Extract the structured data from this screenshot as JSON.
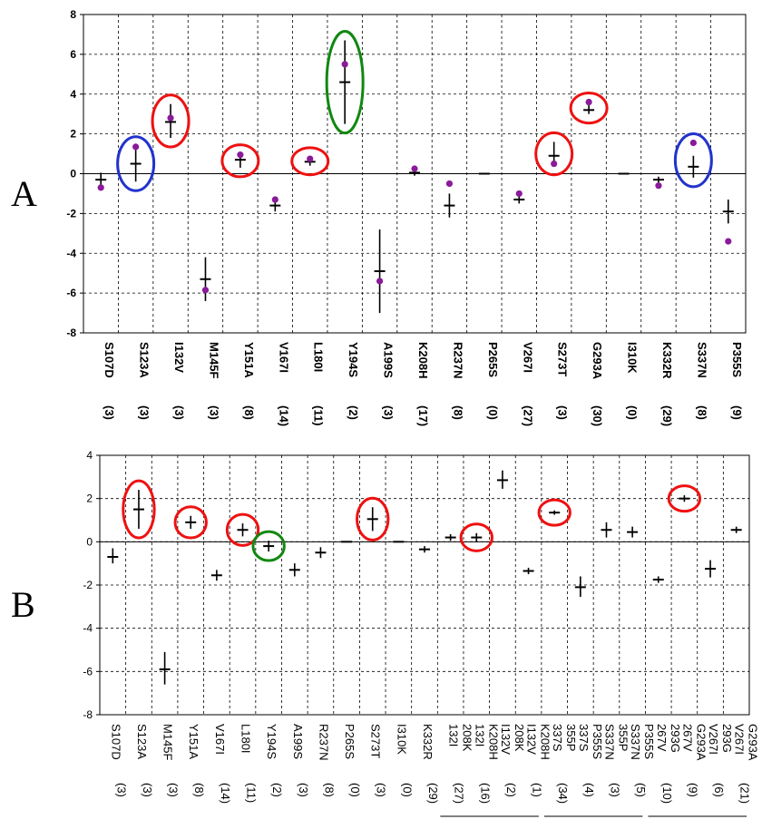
{
  "chart_data": [
    {
      "panel_label": "A",
      "type": "scatter",
      "ylim": [
        -8,
        8
      ],
      "yticks": [
        "8",
        "6",
        "4",
        "2",
        "0",
        "-2",
        "-4",
        "-6",
        "-8"
      ],
      "grid": true,
      "categories": [
        {
          "label": "S107D",
          "n": "(3)",
          "mean": -0.3,
          "lo": -0.7,
          "hi": 0.05,
          "dot": -0.7
        },
        {
          "label": "S123A",
          "n": "(3)",
          "mean": 0.5,
          "lo": -0.4,
          "hi": 1.4,
          "dot": 1.35,
          "circle": "blue"
        },
        {
          "label": "I132V",
          "n": "(3)",
          "mean": 2.6,
          "lo": 1.8,
          "hi": 3.5,
          "dot": 2.8,
          "circle": "red"
        },
        {
          "label": "M145F",
          "n": "(3)",
          "mean": -5.3,
          "lo": -6.4,
          "hi": -4.2,
          "dot": -5.85
        },
        {
          "label": "Y151A",
          "n": "(8)",
          "mean": 0.7,
          "lo": 0.3,
          "hi": 1.0,
          "dot": 0.95,
          "circle": "red"
        },
        {
          "label": "V167I",
          "n": "(14)",
          "mean": -1.6,
          "lo": -1.9,
          "hi": -1.3,
          "dot": -1.3
        },
        {
          "label": "L180I",
          "n": "(11)",
          "mean": 0.6,
          "lo": 0.4,
          "hi": 0.85,
          "dot": 0.75,
          "circle": "red"
        },
        {
          "label": "Y194S",
          "n": "(2)",
          "mean": 4.6,
          "lo": 2.5,
          "hi": 6.7,
          "dot": 5.5,
          "circle": "green"
        },
        {
          "label": "A199S",
          "n": "(3)",
          "mean": -4.9,
          "lo": -7.0,
          "hi": -2.8,
          "dot": -5.4
        },
        {
          "label": "K208H",
          "n": "(17)",
          "mean": 0.05,
          "lo": -0.1,
          "hi": 0.25,
          "dot": 0.25
        },
        {
          "label": "R237N",
          "n": "(8)",
          "mean": -1.6,
          "lo": -2.2,
          "hi": -1.0,
          "dot": -0.5
        },
        {
          "label": "P265S",
          "n": "(0)",
          "mean": 0.0,
          "lo": 0.0,
          "hi": 0.0
        },
        {
          "label": "V267I",
          "n": "(27)",
          "mean": -1.3,
          "lo": -1.5,
          "hi": -1.1,
          "dot": -1.0
        },
        {
          "label": "S273T",
          "n": "(3)",
          "mean": 0.9,
          "lo": 0.4,
          "hi": 1.6,
          "dot": 0.5,
          "circle": "red"
        },
        {
          "label": "G293A",
          "n": "(30)",
          "mean": 3.2,
          "lo": 3.0,
          "hi": 3.45,
          "dot": 3.6,
          "circle": "red"
        },
        {
          "label": "I310K",
          "n": "(0)",
          "mean": 0.0,
          "lo": 0.0,
          "hi": 0.0
        },
        {
          "label": "K332R",
          "n": "(29)",
          "mean": -0.3,
          "lo": -0.45,
          "hi": -0.15,
          "dot": -0.6
        },
        {
          "label": "S337N",
          "n": "(8)",
          "mean": 0.35,
          "lo": -0.2,
          "hi": 0.9,
          "dot": 1.55,
          "circle": "blue"
        },
        {
          "label": "P355S",
          "n": "(9)",
          "mean": -1.9,
          "lo": -2.5,
          "hi": -1.3,
          "dot": -3.4
        }
      ]
    },
    {
      "panel_label": "B",
      "type": "scatter",
      "ylim": [
        -8,
        4
      ],
      "yticks": [
        "4",
        "2",
        "0",
        "-2",
        "-4",
        "-6",
        "-8"
      ],
      "grid": true,
      "categories": [
        {
          "line1": "S107D",
          "line2": "",
          "n": "(3)",
          "mean": -0.7,
          "lo": -1.0,
          "hi": -0.3
        },
        {
          "line1": "S123A",
          "line2": "",
          "n": "(3)",
          "mean": 1.5,
          "lo": 0.6,
          "hi": 2.4,
          "circle": "red"
        },
        {
          "line1": "M145F",
          "line2": "",
          "n": "(3)",
          "mean": -5.9,
          "lo": -6.6,
          "hi": -5.1
        },
        {
          "line1": "Y151A",
          "line2": "",
          "n": "(8)",
          "mean": 0.9,
          "lo": 0.6,
          "hi": 1.2,
          "circle": "red"
        },
        {
          "line1": "V167I",
          "line2": "",
          "n": "(14)",
          "mean": -1.55,
          "lo": -1.8,
          "hi": -1.3
        },
        {
          "line1": "L180I",
          "line2": "",
          "n": "(11)",
          "mean": 0.55,
          "lo": 0.25,
          "hi": 0.85,
          "circle": "red"
        },
        {
          "line1": "Y194S",
          "line2": "",
          "n": "(2)",
          "mean": -0.2,
          "lo": -0.45,
          "hi": 0.05,
          "circle": "green"
        },
        {
          "line1": "A199S",
          "line2": "",
          "n": "(3)",
          "mean": -1.3,
          "lo": -1.6,
          "hi": -1.0
        },
        {
          "line1": "R237N",
          "line2": "",
          "n": "(8)",
          "mean": -0.5,
          "lo": -0.75,
          "hi": -0.25
        },
        {
          "line1": "P265S",
          "line2": "",
          "n": "(0)",
          "mean": 0.0,
          "lo": 0.0,
          "hi": 0.0
        },
        {
          "line1": "S273T",
          "line2": "",
          "n": "(3)",
          "mean": 1.05,
          "lo": 0.5,
          "hi": 1.6,
          "circle": "red"
        },
        {
          "line1": "I310K",
          "line2": "",
          "n": "(0)",
          "mean": 0.0,
          "lo": 0.0,
          "hi": 0.0
        },
        {
          "line1": "K332R",
          "line2": "",
          "n": "(29)",
          "mean": -0.35,
          "lo": -0.5,
          "hi": -0.2
        },
        {
          "line1": "132I",
          "line2": "208K",
          "n": "(27)",
          "mean": 0.2,
          "lo": 0.05,
          "hi": 0.35
        },
        {
          "line1": "132I",
          "line2": "K208H",
          "n": "(16)",
          "mean": 0.2,
          "lo": 0.0,
          "hi": 0.4,
          "circle": "red"
        },
        {
          "line1": "I132V",
          "line2": "208K",
          "n": "(2)",
          "mean": 2.85,
          "lo": 2.45,
          "hi": 3.3
        },
        {
          "line1": "I132V",
          "line2": "K208H",
          "n": "(1)",
          "mean": -1.35,
          "lo": -1.5,
          "hi": -1.2
        },
        {
          "line1": "337S",
          "line2": "355P",
          "n": "(34)",
          "mean": 1.35,
          "lo": 1.25,
          "hi": 1.45,
          "circle": "red"
        },
        {
          "line1": "337S",
          "line2": "P355S",
          "n": "(4)",
          "mean": -2.1,
          "lo": -2.55,
          "hi": -1.6
        },
        {
          "line1": "S337N",
          "line2": "355P",
          "n": "(3)",
          "mean": 0.55,
          "lo": 0.2,
          "hi": 0.9
        },
        {
          "line1": "S337N",
          "line2": "P355S",
          "n": "(5)",
          "mean": 0.45,
          "lo": 0.2,
          "hi": 0.7
        },
        {
          "line1": "267V",
          "line2": "293G",
          "n": "(10)",
          "mean": -1.75,
          "lo": -1.9,
          "hi": -1.6
        },
        {
          "line1": "267V",
          "line2": "G293A",
          "n": "(9)",
          "mean": 2.0,
          "lo": 1.85,
          "hi": 2.15,
          "circle": "red"
        },
        {
          "line1": "V267I",
          "line2": "293G",
          "n": "(6)",
          "mean": -1.25,
          "lo": -1.65,
          "hi": -0.85
        },
        {
          "line1": "V267I",
          "line2": "G293A",
          "n": "(21)",
          "mean": 0.55,
          "lo": 0.4,
          "hi": 0.7
        }
      ]
    }
  ],
  "colors": {
    "red": "#ee1111",
    "blue": "#2233cc",
    "green": "#118811",
    "dot": "#8a1a9a",
    "mark": "#000000",
    "grid": "#000000"
  }
}
